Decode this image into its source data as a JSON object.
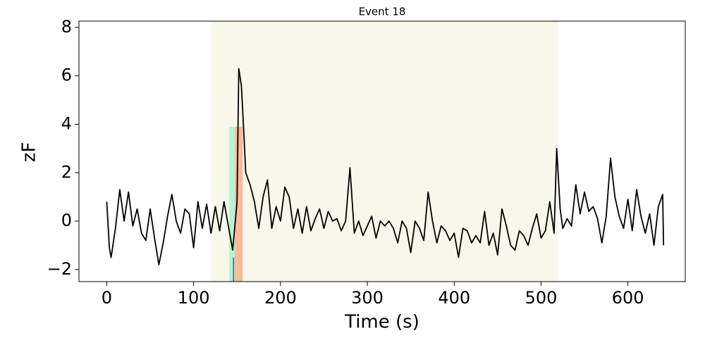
{
  "chart_data": {
    "type": "line",
    "title": "Event 18",
    "xlabel": "Time (s)",
    "ylabel": "zF",
    "xlim": [
      -32,
      666
    ],
    "ylim": [
      -2.5,
      8.26
    ],
    "xticks": [
      0,
      100,
      200,
      300,
      400,
      500,
      600
    ],
    "yticks": [
      {
        "value": -2,
        "label": "−2"
      },
      0,
      2,
      4,
      6,
      8
    ],
    "spans": [
      {
        "x0": 120,
        "x1": 520,
        "color": "#f8f8ea"
      },
      {
        "x0": 141,
        "x1": 147.5,
        "y0": -2.5,
        "y1": 3.9,
        "color": "#b5f4d6"
      },
      {
        "x0": 147.5,
        "x1": 156.5,
        "y0": -2.5,
        "y1": 3.9,
        "color": "#fbb99b"
      }
    ],
    "vlines": [
      {
        "x": 146,
        "y0": -1.5,
        "y1": -2.5,
        "color": "#3b4cc0"
      }
    ],
    "series": [
      {
        "color": "#000000",
        "x": [
          0,
          3,
          5,
          10,
          15,
          20,
          25,
          30,
          35,
          40,
          45,
          50,
          55,
          60,
          65,
          70,
          75,
          80,
          85,
          90,
          95,
          100,
          105,
          110,
          115,
          120,
          125,
          130,
          135,
          140,
          145,
          150,
          152,
          155,
          158,
          160,
          165,
          170,
          175,
          180,
          185,
          190,
          195,
          200,
          205,
          210,
          215,
          220,
          225,
          230,
          235,
          240,
          245,
          250,
          255,
          260,
          265,
          270,
          275,
          280,
          285,
          290,
          295,
          300,
          305,
          310,
          315,
          320,
          325,
          330,
          335,
          340,
          345,
          350,
          355,
          360,
          365,
          370,
          375,
          380,
          385,
          390,
          395,
          400,
          405,
          410,
          415,
          420,
          425,
          430,
          435,
          440,
          445,
          450,
          455,
          460,
          465,
          470,
          475,
          480,
          485,
          490,
          495,
          500,
          505,
          510,
          515,
          518,
          522,
          525,
          530,
          535,
          540,
          545,
          550,
          555,
          560,
          565,
          570,
          575,
          580,
          585,
          590,
          595,
          600,
          605,
          610,
          615,
          620,
          625,
          630,
          635,
          640,
          641
        ],
        "values": [
          0.8,
          -1.1,
          -1.5,
          -0.3,
          1.3,
          0.0,
          1.2,
          -0.2,
          0.5,
          -0.5,
          -0.8,
          0.5,
          -0.7,
          -1.8,
          -0.9,
          0.2,
          1.1,
          0.0,
          -0.5,
          0.5,
          0.3,
          -1.1,
          0.8,
          -0.3,
          0.7,
          -0.5,
          0.6,
          -0.4,
          0.8,
          -0.2,
          -1.2,
          0.8,
          6.3,
          5.6,
          3.5,
          2.0,
          1.5,
          0.8,
          -0.3,
          1.0,
          1.7,
          -0.3,
          0.6,
          0.0,
          1.4,
          1.0,
          -0.3,
          0.5,
          -0.5,
          0.6,
          -0.4,
          0.1,
          0.5,
          -0.3,
          0.4,
          0.0,
          0.1,
          -0.4,
          0.0,
          2.2,
          -0.5,
          0.0,
          -0.6,
          -0.2,
          0.2,
          -0.7,
          0.0,
          -0.2,
          0.0,
          -0.3,
          -0.9,
          0.0,
          -0.3,
          -1.3,
          0.0,
          -0.3,
          -0.8,
          1.2,
          0.0,
          -0.9,
          -0.2,
          -0.4,
          -0.8,
          -0.5,
          -1.5,
          -0.3,
          -0.4,
          -0.9,
          -0.6,
          -0.9,
          0.4,
          -1.0,
          -0.5,
          -1.4,
          0.5,
          -0.2,
          -1.0,
          -1.2,
          -0.4,
          -0.6,
          -1.0,
          -0.3,
          0.3,
          -0.7,
          -0.4,
          0.8,
          -0.5,
          3.0,
          0.5,
          -0.3,
          0.1,
          -0.2,
          1.5,
          0.3,
          1.2,
          0.4,
          0.6,
          0.1,
          -0.9,
          0.2,
          2.6,
          1.0,
          0.2,
          -0.3,
          0.9,
          -0.4,
          1.3,
          0.2,
          -0.5,
          0.3,
          -1.0,
          0.6,
          1.1,
          -1.0
        ]
      }
    ]
  }
}
